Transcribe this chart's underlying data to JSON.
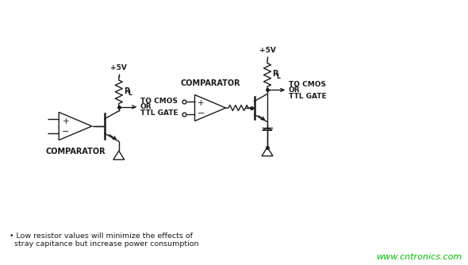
{
  "bg_color": "#ffffff",
  "text_color": "#1a1a1a",
  "line_color": "#1a1a1a",
  "watermark_color": "#00bb00",
  "watermark": "www.cntronics.com",
  "note_line1": "• Low resistor values will minimize the effects of",
  "note_line2": "  stray capitance but increase power consumption",
  "figsize": [
    5.9,
    3.34
  ],
  "dpi": 100
}
